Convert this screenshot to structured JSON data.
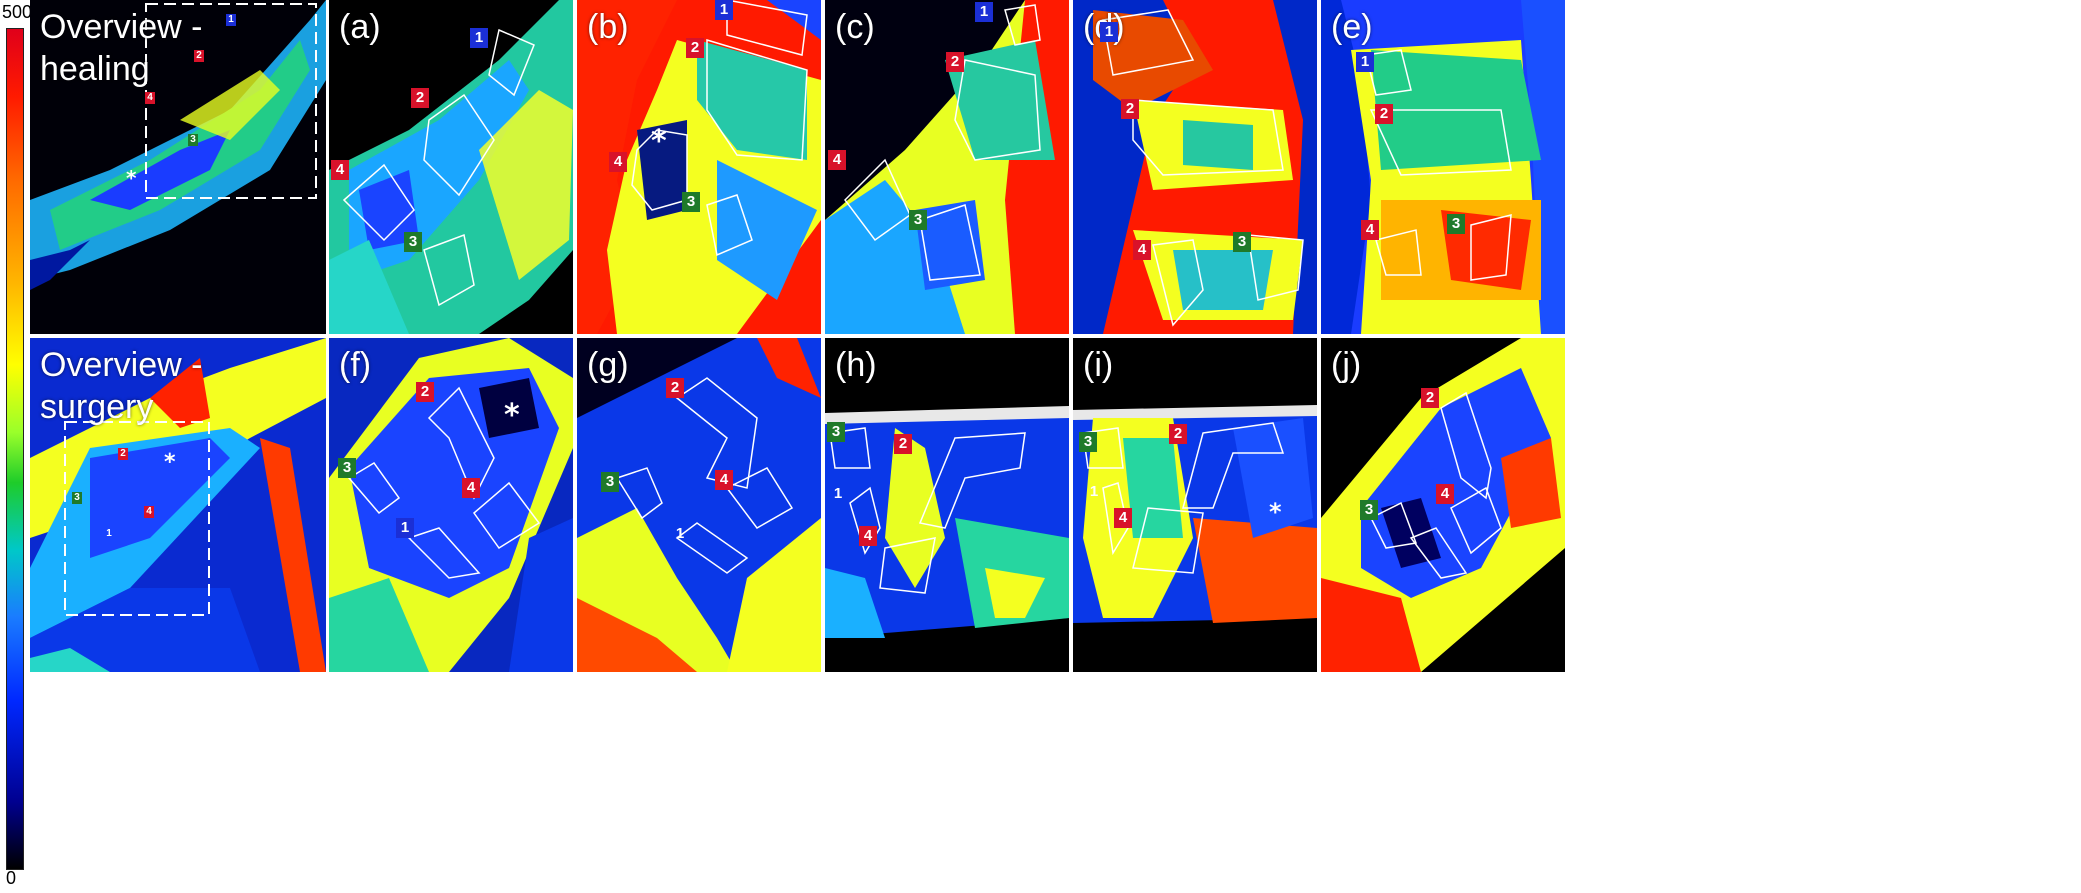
{
  "colorbar": {
    "max_label": "500",
    "min_label": "0",
    "colors": [
      "#e0001a",
      "#ff6a00",
      "#ffff00",
      "#1ecc2a",
      "#00c8c8",
      "#0028ff",
      "#000090",
      "#000000"
    ]
  },
  "panels": {
    "overview_healing": {
      "label": "Overview -\nhealing"
    },
    "a": {
      "label": "(a)"
    },
    "b": {
      "label": "(b)"
    },
    "c": {
      "label": "(c)"
    },
    "d": {
      "label": "(d)"
    },
    "e": {
      "label": "(e)"
    },
    "overview_surgery": {
      "label": "Overview -\nsurgery"
    },
    "f": {
      "label": "(f)"
    },
    "g": {
      "label": "(g)"
    },
    "h": {
      "label": "(h)"
    },
    "i": {
      "label": "(i)"
    },
    "j": {
      "label": "(j)"
    }
  },
  "markers": {
    "m1": "1",
    "m2": "2",
    "m3": "3",
    "m4": "4",
    "asterisk": "*"
  }
}
